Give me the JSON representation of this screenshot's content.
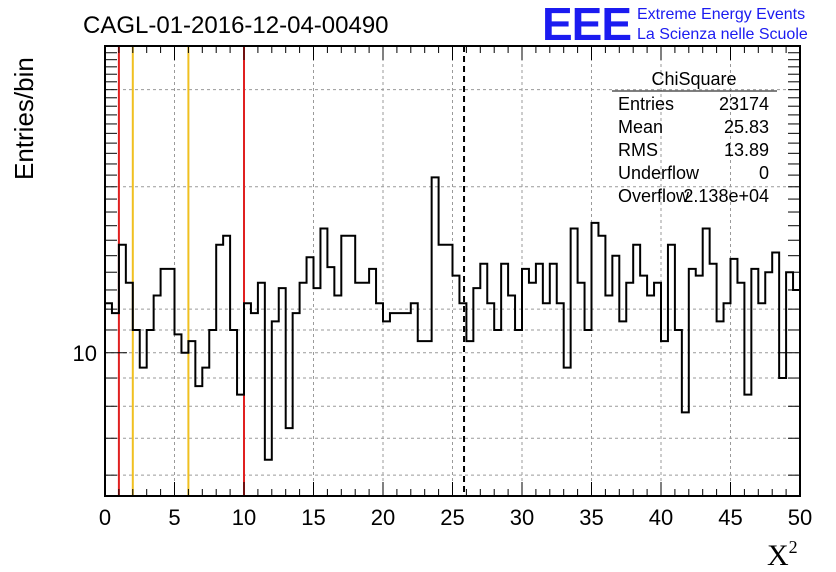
{
  "chart_data": {
    "type": "histogram",
    "title": "CAGL-01-2016-12-04-00490",
    "xlabel": "X",
    "xlabel_sup": "2",
    "ylabel": "Entries/bin",
    "xlim": [
      0,
      50
    ],
    "ylim": [
      5.5,
      36
    ],
    "yscale": "log",
    "grid": true,
    "bin_width": 0.5,
    "x_ticks": [
      "0",
      "5",
      "10",
      "15",
      "20",
      "25",
      "30",
      "35",
      "40",
      "45",
      "50"
    ],
    "y_ticks": [
      "10"
    ],
    "values": [
      12.3,
      11.8,
      15.7,
      13.4,
      11.0,
      9.4,
      11.0,
      12.7,
      14.2,
      14.2,
      10.8,
      10.0,
      10.5,
      8.7,
      9.4,
      11.0,
      15.7,
      16.3,
      11.0,
      8.4,
      12.3,
      11.8,
      13.4,
      6.4,
      11.4,
      13.1,
      7.3,
      11.8,
      13.4,
      14.9,
      13.1,
      16.8,
      14.3,
      12.7,
      16.3,
      16.3,
      13.4,
      13.4,
      14.2,
      12.3,
      11.4,
      11.8,
      11.8,
      11.8,
      12.3,
      10.5,
      10.5,
      20.8,
      15.7,
      15.7,
      13.8,
      12.3,
      10.5,
      13.1,
      14.5,
      12.3,
      11.0,
      14.5,
      12.7,
      11.0,
      14.2,
      13.4,
      14.5,
      12.3,
      14.5,
      12.3,
      9.4,
      16.8,
      13.4,
      11.0,
      17.2,
      16.3,
      12.7,
      15.0,
      11.4,
      13.4,
      15.7,
      13.8,
      12.7,
      13.4,
      10.5,
      15.7,
      11.0,
      7.8,
      14.2,
      13.8,
      16.8,
      14.5,
      11.4,
      12.3,
      14.8,
      13.4,
      8.4,
      14.2,
      12.3,
      14.0,
      15.2,
      9.0,
      14.0,
      13.0
    ],
    "lines": [
      {
        "x": 1,
        "color": "#e02020",
        "style": "solid"
      },
      {
        "x": 2,
        "color": "#f0c020",
        "style": "solid"
      },
      {
        "x": 6,
        "color": "#f0c020",
        "style": "solid"
      },
      {
        "x": 10,
        "color": "#e02020",
        "style": "solid"
      },
      {
        "x": 25.83,
        "color": "#000000",
        "style": "dashed"
      }
    ],
    "legend_position": "top-right"
  },
  "logo": {
    "text": "EEE",
    "line1": "Extreme Energy Events",
    "line2": "La Scienza nelle Scuole",
    "color": "#1b1bf0"
  },
  "stats": {
    "title": "ChiSquare",
    "rows": [
      {
        "label": "Entries",
        "value": "23174"
      },
      {
        "label": "Mean",
        "value": "25.83"
      },
      {
        "label": "RMS",
        "value": "13.89"
      },
      {
        "label": "Underflow",
        "value": "0"
      },
      {
        "label": "Overflow",
        "value": "2.138e+04"
      }
    ]
  }
}
